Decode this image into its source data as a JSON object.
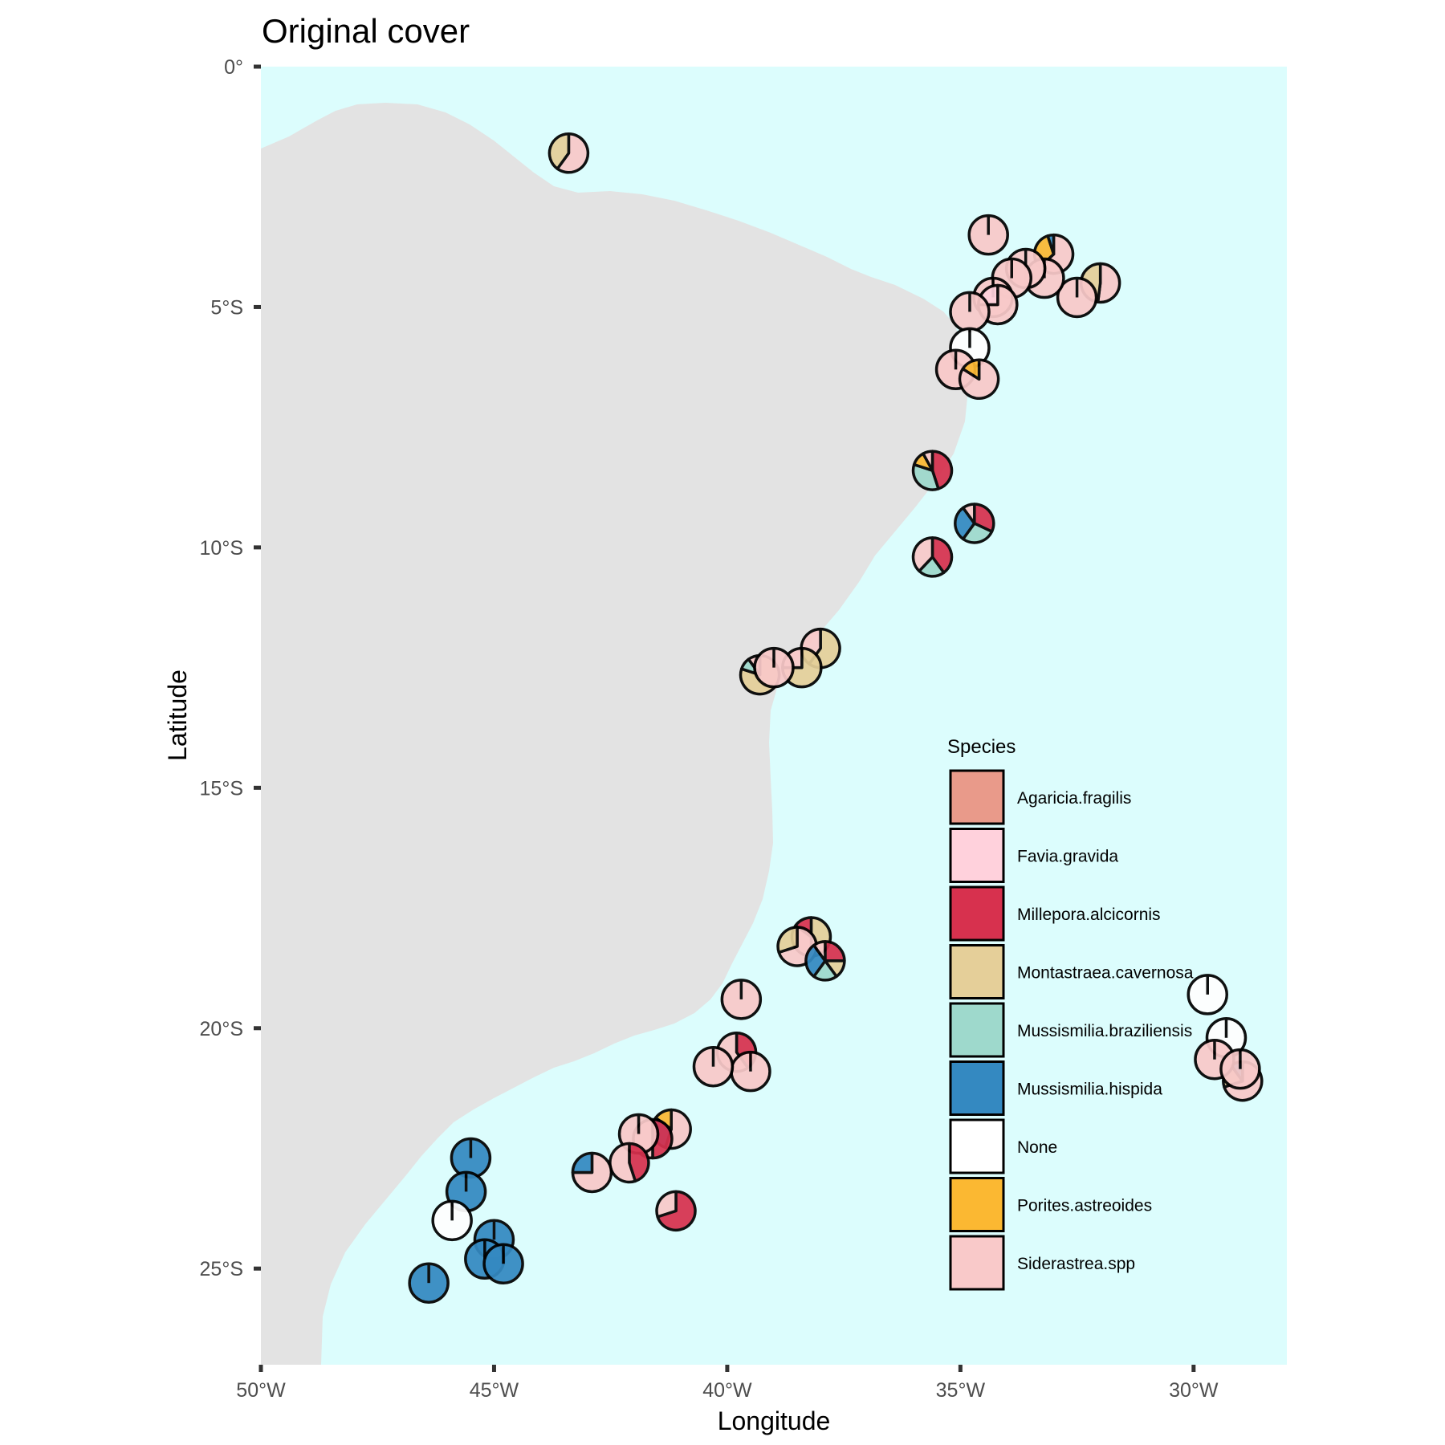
{
  "chart_data": {
    "type": "map-pie",
    "title": "Original cover",
    "xlabel": "Longitude",
    "ylabel": "Latitude",
    "xlim": [
      -50,
      -28
    ],
    "ylim": [
      -27,
      0
    ],
    "x_ticks": [
      {
        "value": -50,
        "label": "50°W"
      },
      {
        "value": -45,
        "label": "45°W"
      },
      {
        "value": -40,
        "label": "40°W"
      },
      {
        "value": -35,
        "label": "35°W"
      },
      {
        "value": -30,
        "label": "30°W"
      }
    ],
    "y_ticks": [
      {
        "value": 0,
        "label": "0°"
      },
      {
        "value": -5,
        "label": "5°S"
      },
      {
        "value": -10,
        "label": "10°S"
      },
      {
        "value": -15,
        "label": "15°S"
      },
      {
        "value": -20,
        "label": "20°S"
      },
      {
        "value": -25,
        "label": "25°S"
      }
    ],
    "colors": {
      "ocean": "#dcfdfd",
      "land": "#e3e3e3",
      "pie_stroke": "#000000"
    },
    "legend": {
      "title": "Species",
      "placement": "inside-right",
      "entries": [
        {
          "name": "Agaricia.fragilis",
          "color": "#e99a8a"
        },
        {
          "name": "Favia.gravida",
          "color": "#ffd1dc"
        },
        {
          "name": "Millepora.alcicornis",
          "color": "#d7314e"
        },
        {
          "name": "Montastraea.cavernosa",
          "color": "#e5cf99"
        },
        {
          "name": "Mussismilia.braziliensis",
          "color": "#9ed9cc"
        },
        {
          "name": "Mussismilia.hispida",
          "color": "#3489c1"
        },
        {
          "name": "None",
          "color": "#ffffff"
        },
        {
          "name": "Porites.astreoides",
          "color": "#fbb832"
        },
        {
          "name": "Siderastrea.spp",
          "color": "#f9c9c9"
        }
      ]
    },
    "sites": [
      {
        "lon": -43.4,
        "lat": -1.8,
        "cover": {
          "Siderastrea.spp": 0.6,
          "Montastraea.cavernosa": 0.4
        }
      },
      {
        "lon": -34.4,
        "lat": -3.5,
        "cover": {
          "Siderastrea.spp": 1.0
        }
      },
      {
        "lon": -33.0,
        "lat": -3.9,
        "cover": {
          "Siderastrea.spp": 0.63,
          "Porites.astreoides": 0.32,
          "Mussismilia.hispida": 0.05
        }
      },
      {
        "lon": -32.0,
        "lat": -4.5,
        "cover": {
          "Siderastrea.spp": 0.52,
          "Montastraea.cavernosa": 0.48
        }
      },
      {
        "lon": -32.5,
        "lat": -4.8,
        "cover": {
          "Siderastrea.spp": 1.0
        }
      },
      {
        "lon": -33.2,
        "lat": -4.4,
        "cover": {
          "Siderastrea.spp": 1.0
        }
      },
      {
        "lon": -33.6,
        "lat": -4.2,
        "cover": {
          "Siderastrea.spp": 1.0
        }
      },
      {
        "lon": -33.9,
        "lat": -4.4,
        "cover": {
          "Siderastrea.spp": 1.0
        }
      },
      {
        "lon": -34.3,
        "lat": -4.8,
        "cover": {
          "Siderastrea.spp": 1.0
        }
      },
      {
        "lon": -34.2,
        "lat": -4.95,
        "cover": {
          "Siderastrea.spp": 0.75,
          "Favia.gravida": 0.25
        }
      },
      {
        "lon": -34.8,
        "lat": -5.1,
        "cover": {
          "Siderastrea.spp": 1.0
        }
      },
      {
        "lon": -34.8,
        "lat": -5.85,
        "cover": {
          "None": 1.0
        }
      },
      {
        "lon": -35.1,
        "lat": -6.3,
        "cover": {
          "Siderastrea.spp": 1.0
        }
      },
      {
        "lon": -34.6,
        "lat": -6.5,
        "cover": {
          "Siderastrea.spp": 0.84,
          "Porites.astreoides": 0.16
        }
      },
      {
        "lon": -35.6,
        "lat": -8.4,
        "cover": {
          "Millepora.alcicornis": 0.45,
          "Mussismilia.braziliensis": 0.35,
          "Porites.astreoides": 0.12,
          "Siderastrea.spp": 0.08
        }
      },
      {
        "lon": -34.7,
        "lat": -9.5,
        "cover": {
          "Millepora.alcicornis": 0.32,
          "Mussismilia.braziliensis": 0.28,
          "Mussismilia.hispida": 0.3,
          "Siderastrea.spp": 0.1
        }
      },
      {
        "lon": -35.6,
        "lat": -10.2,
        "cover": {
          "Millepora.alcicornis": 0.4,
          "Mussismilia.braziliensis": 0.22,
          "Siderastrea.spp": 0.38
        }
      },
      {
        "lon": -38.0,
        "lat": -12.1,
        "cover": {
          "Montastraea.cavernosa": 0.6,
          "Siderastrea.spp": 0.4
        }
      },
      {
        "lon": -38.4,
        "lat": -12.5,
        "cover": {
          "Montastraea.cavernosa": 0.75,
          "Siderastrea.spp": 0.25
        }
      },
      {
        "lon": -39.3,
        "lat": -12.65,
        "cover": {
          "Montastraea.cavernosa": 0.8,
          "Mussismilia.braziliensis": 0.1,
          "Siderastrea.spp": 0.1
        }
      },
      {
        "lon": -39.0,
        "lat": -12.5,
        "cover": {
          "Siderastrea.spp": 1.0
        }
      },
      {
        "lon": -38.2,
        "lat": -18.1,
        "cover": {
          "Montastraea.cavernosa": 0.5,
          "Siderastrea.spp": 0.35,
          "Millepora.alcicornis": 0.15
        }
      },
      {
        "lon": -38.5,
        "lat": -18.3,
        "cover": {
          "Siderastrea.spp": 0.7,
          "Montastraea.cavernosa": 0.3
        }
      },
      {
        "lon": -37.9,
        "lat": -18.6,
        "cover": {
          "Millepora.alcicornis": 0.25,
          "Montastraea.cavernosa": 0.15,
          "Mussismilia.braziliensis": 0.2,
          "Mussismilia.hispida": 0.3,
          "Siderastrea.spp": 0.1
        }
      },
      {
        "lon": -39.7,
        "lat": -19.4,
        "cover": {
          "Siderastrea.spp": 1.0
        }
      },
      {
        "lon": -39.8,
        "lat": -20.5,
        "cover": {
          "Millepora.alcicornis": 0.4,
          "Siderastrea.spp": 0.6
        }
      },
      {
        "lon": -39.5,
        "lat": -20.9,
        "cover": {
          "Siderastrea.spp": 1.0
        }
      },
      {
        "lon": -40.3,
        "lat": -20.8,
        "cover": {
          "Siderastrea.spp": 1.0
        }
      },
      {
        "lon": -41.2,
        "lat": -22.1,
        "cover": {
          "Siderastrea.spp": 0.55,
          "Mussismilia.hispida": 0.3,
          "Porites.astreoides": 0.15
        }
      },
      {
        "lon": -41.6,
        "lat": -22.3,
        "cover": {
          "Millepora.alcicornis": 0.5,
          "Siderastrea.spp": 0.5
        }
      },
      {
        "lon": -41.9,
        "lat": -22.2,
        "cover": {
          "Siderastrea.spp": 1.0
        }
      },
      {
        "lon": -42.1,
        "lat": -22.8,
        "cover": {
          "Millepora.alcicornis": 0.45,
          "Siderastrea.spp": 0.55
        }
      },
      {
        "lon": -42.9,
        "lat": -23.0,
        "cover": {
          "Siderastrea.spp": 0.75,
          "Mussismilia.hispida": 0.25
        }
      },
      {
        "lon": -41.1,
        "lat": -23.8,
        "cover": {
          "Millepora.alcicornis": 0.7,
          "Siderastrea.spp": 0.3
        }
      },
      {
        "lon": -45.5,
        "lat": -22.7,
        "cover": {
          "Mussismilia.hispida": 1.0
        }
      },
      {
        "lon": -45.6,
        "lat": -23.4,
        "cover": {
          "Mussismilia.hispida": 1.0
        }
      },
      {
        "lon": -45.9,
        "lat": -24.0,
        "cover": {
          "None": 1.0
        }
      },
      {
        "lon": -45.0,
        "lat": -24.4,
        "cover": {
          "Mussismilia.hispida": 1.0
        }
      },
      {
        "lon": -45.2,
        "lat": -24.8,
        "cover": {
          "Mussismilia.hispida": 1.0
        }
      },
      {
        "lon": -44.8,
        "lat": -24.9,
        "cover": {
          "Mussismilia.hispida": 1.0
        }
      },
      {
        "lon": -46.4,
        "lat": -25.3,
        "cover": {
          "Mussismilia.hispida": 1.0
        }
      },
      {
        "lon": -29.7,
        "lat": -19.3,
        "cover": {
          "None": 1.0
        }
      },
      {
        "lon": -29.3,
        "lat": -20.2,
        "cover": {
          "None": 1.0
        }
      },
      {
        "lon": -28.95,
        "lat": -21.1,
        "cover": {
          "Siderastrea.spp": 0.7,
          "Montastraea.cavernosa": 0.2,
          "Mussismilia.hispida": 0.1
        }
      },
      {
        "lon": -29.55,
        "lat": -20.65,
        "cover": {
          "Siderastrea.spp": 1.0
        }
      },
      {
        "lon": -29.0,
        "lat": -20.85,
        "cover": {
          "Siderastrea.spp": 1.0
        }
      }
    ]
  }
}
